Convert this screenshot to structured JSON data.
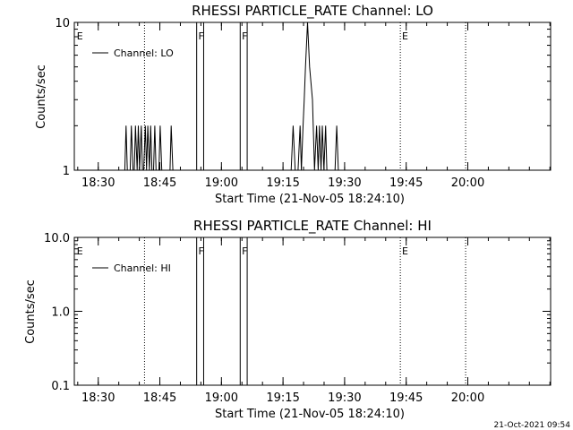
{
  "footer_timestamp": "21-Oct-2021 09:54",
  "chart_data": [
    {
      "type": "line",
      "id": "lo",
      "title": "RHESSI PARTICLE_RATE Channel: LO",
      "xlabel": "Start Time (21-Nov-05 18:24:10)",
      "ylabel": "Counts/sec",
      "x_unit": "minutes since 18:24:10",
      "xlim": [
        0,
        116
      ],
      "ylim": [
        1,
        10
      ],
      "yscale": "log",
      "x_ticks": [
        {
          "label": "18:30",
          "x": 5.83
        },
        {
          "label": "18:45",
          "x": 20.83
        },
        {
          "label": "19:00",
          "x": 35.83
        },
        {
          "label": "19:15",
          "x": 50.83
        },
        {
          "label": "19:30",
          "x": 65.83
        },
        {
          "label": "19:45",
          "x": 80.83
        },
        {
          "label": "20:00",
          "x": 95.83
        }
      ],
      "y_ticks": [
        {
          "label": "1",
          "y": 1
        },
        {
          "label": "10",
          "y": 10
        }
      ],
      "legend": {
        "label": "Channel: LO",
        "placement": "top-left"
      },
      "dotted_lines": [
        17.1,
        79.4,
        95.3
      ],
      "solid_lines": [
        29.8,
        31.5,
        40.4,
        42.1
      ],
      "markers": [
        {
          "label": "E",
          "x": 0.6
        },
        {
          "label": "F",
          "x": 30.2
        },
        {
          "label": "F",
          "x": 40.8
        },
        {
          "label": "E",
          "x": 79.8
        }
      ],
      "series": [
        {
          "x": [
            0,
            12.3,
            12.6,
            12.9,
            13.3,
            13.6,
            13.9,
            14.3,
            14.6,
            14.9,
            15.3,
            15.6,
            15.9,
            16.3,
            16.6,
            16.9,
            17.3,
            17.6,
            17.9,
            18.3,
            18.6,
            18.9,
            19.3,
            19.6,
            19.9,
            20.3,
            20.6,
            20.9,
            21.3,
            21.6,
            21.9,
            22.3,
            22.6,
            22.9,
            23.3,
            23.6,
            24.0,
            52.8,
            53.3,
            53.8,
            54.5,
            55.0,
            55.3,
            55.7,
            56.0,
            56.3,
            56.8,
            57.3,
            58.0,
            58.5,
            59.0,
            59.4,
            59.7,
            60.1,
            60.4,
            60.8,
            61.2,
            61.5,
            62.0,
            63.5,
            63.9,
            64.3,
            116
          ],
          "y": [
            1,
            1,
            2,
            1,
            1,
            1,
            2,
            1,
            1,
            2,
            1,
            2,
            1,
            2,
            1,
            1,
            2,
            1,
            2,
            1,
            2,
            1,
            1,
            2,
            1,
            1,
            1,
            2,
            1,
            1,
            1,
            1,
            1,
            1,
            1,
            2,
            1,
            1,
            2,
            1,
            1,
            2,
            1,
            2,
            3,
            5,
            10,
            5,
            3,
            1,
            2,
            1,
            2,
            1,
            2,
            1,
            2,
            1,
            1,
            1,
            2,
            1,
            1
          ]
        }
      ]
    },
    {
      "type": "line",
      "id": "hi",
      "title": "RHESSI PARTICLE_RATE Channel: HI",
      "xlabel": "Start Time (21-Nov-05 18:24:10)",
      "ylabel": "Counts/sec",
      "x_unit": "minutes since 18:24:10",
      "xlim": [
        0,
        116
      ],
      "ylim": [
        0.1,
        10
      ],
      "yscale": "log",
      "x_ticks": [
        {
          "label": "18:30",
          "x": 5.83
        },
        {
          "label": "18:45",
          "x": 20.83
        },
        {
          "label": "19:00",
          "x": 35.83
        },
        {
          "label": "19:15",
          "x": 50.83
        },
        {
          "label": "19:30",
          "x": 65.83
        },
        {
          "label": "19:45",
          "x": 80.83
        },
        {
          "label": "20:00",
          "x": 95.83
        }
      ],
      "y_ticks": [
        {
          "label": "0.1",
          "y": 0.1
        },
        {
          "label": "1.0",
          "y": 1.0
        },
        {
          "label": "10.0",
          "y": 10.0
        }
      ],
      "legend": {
        "label": "Channel: HI",
        "placement": "top-left"
      },
      "dotted_lines": [
        17.1,
        79.4,
        95.3
      ],
      "solid_lines": [
        29.8,
        31.5,
        40.4,
        42.1
      ],
      "markers": [
        {
          "label": "E",
          "x": 0.6
        },
        {
          "label": "F",
          "x": 30.2
        },
        {
          "label": "F",
          "x": 40.8
        },
        {
          "label": "E",
          "x": 79.8
        }
      ],
      "series": [
        {
          "x": [],
          "y": []
        }
      ]
    }
  ]
}
